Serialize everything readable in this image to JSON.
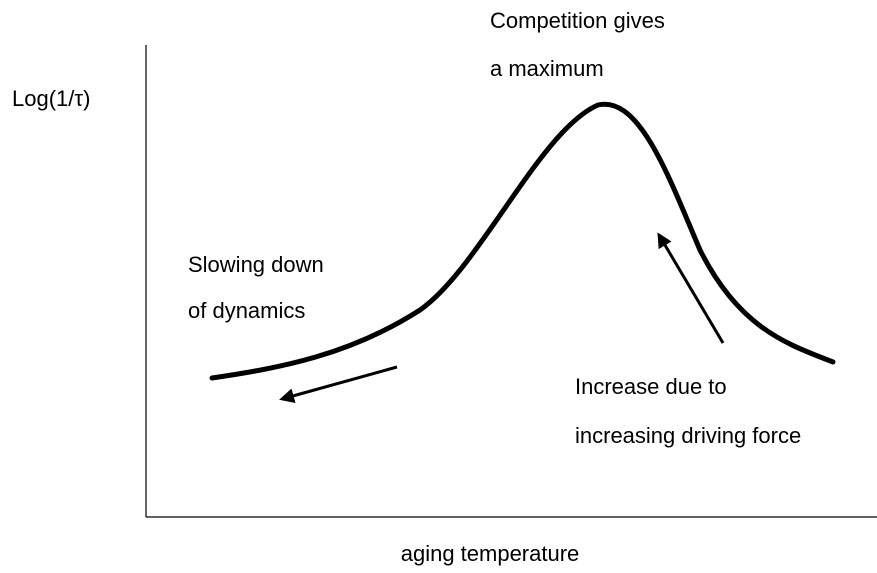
{
  "axes": {
    "y_label": "Log(1/τ)",
    "x_label": "aging temperature"
  },
  "annotations": [
    {
      "lines": [
        "Competition gives",
        "a maximum"
      ]
    },
    {
      "lines": [
        "Slowing down",
        "of dynamics"
      ]
    },
    {
      "lines": [
        "Increase due to",
        "increasing driving force"
      ]
    }
  ]
}
